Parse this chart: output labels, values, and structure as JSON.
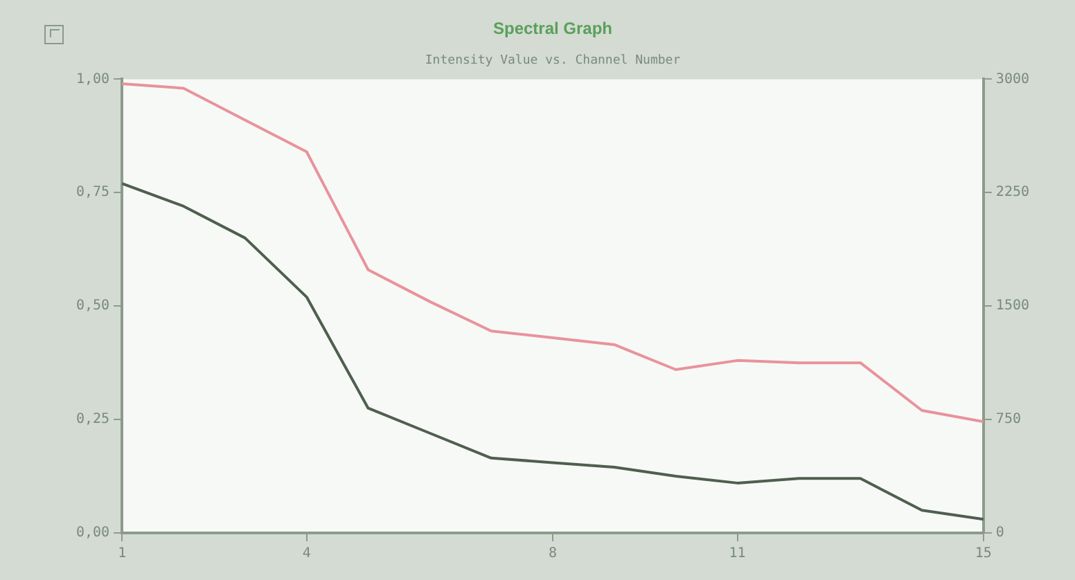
{
  "chart_data": {
    "type": "line",
    "title": "Spectral Graph",
    "subtitle": "Intensity Value vs. Channel Number",
    "x": [
      1,
      2,
      3,
      4,
      5,
      6,
      7,
      8,
      9,
      10,
      11,
      12,
      13,
      14,
      15
    ],
    "series": [
      {
        "color": "#e8939c",
        "values": [
          0.99,
          0.98,
          0.91,
          0.84,
          0.58,
          0.51,
          0.445,
          0.43,
          0.415,
          0.36,
          0.38,
          0.375,
          0.375,
          0.27,
          0.245
        ]
      },
      {
        "color": "#4f5f4f",
        "values": [
          0.77,
          0.72,
          0.65,
          0.52,
          0.275,
          0.22,
          0.165,
          0.155,
          0.145,
          0.125,
          0.11,
          0.12,
          0.12,
          0.05,
          0.03
        ]
      }
    ],
    "xlim": [
      1,
      15
    ],
    "xticks": [
      1,
      4,
      8,
      11,
      15
    ],
    "ylim": [
      0,
      1
    ],
    "yticks": [
      {
        "value": 0,
        "label": "0,00"
      },
      {
        "value": 0.25,
        "label": "0,25"
      },
      {
        "value": 0.5,
        "label": "0,50"
      },
      {
        "value": 0.75,
        "label": "0,75"
      },
      {
        "value": 1,
        "label": "1,00"
      }
    ],
    "y2lim": [
      0,
      3000
    ],
    "y2ticks": [
      0,
      750,
      1500,
      2250,
      3000
    ],
    "grid": false,
    "legend": false,
    "marker": "none",
    "line_style": "solid"
  }
}
